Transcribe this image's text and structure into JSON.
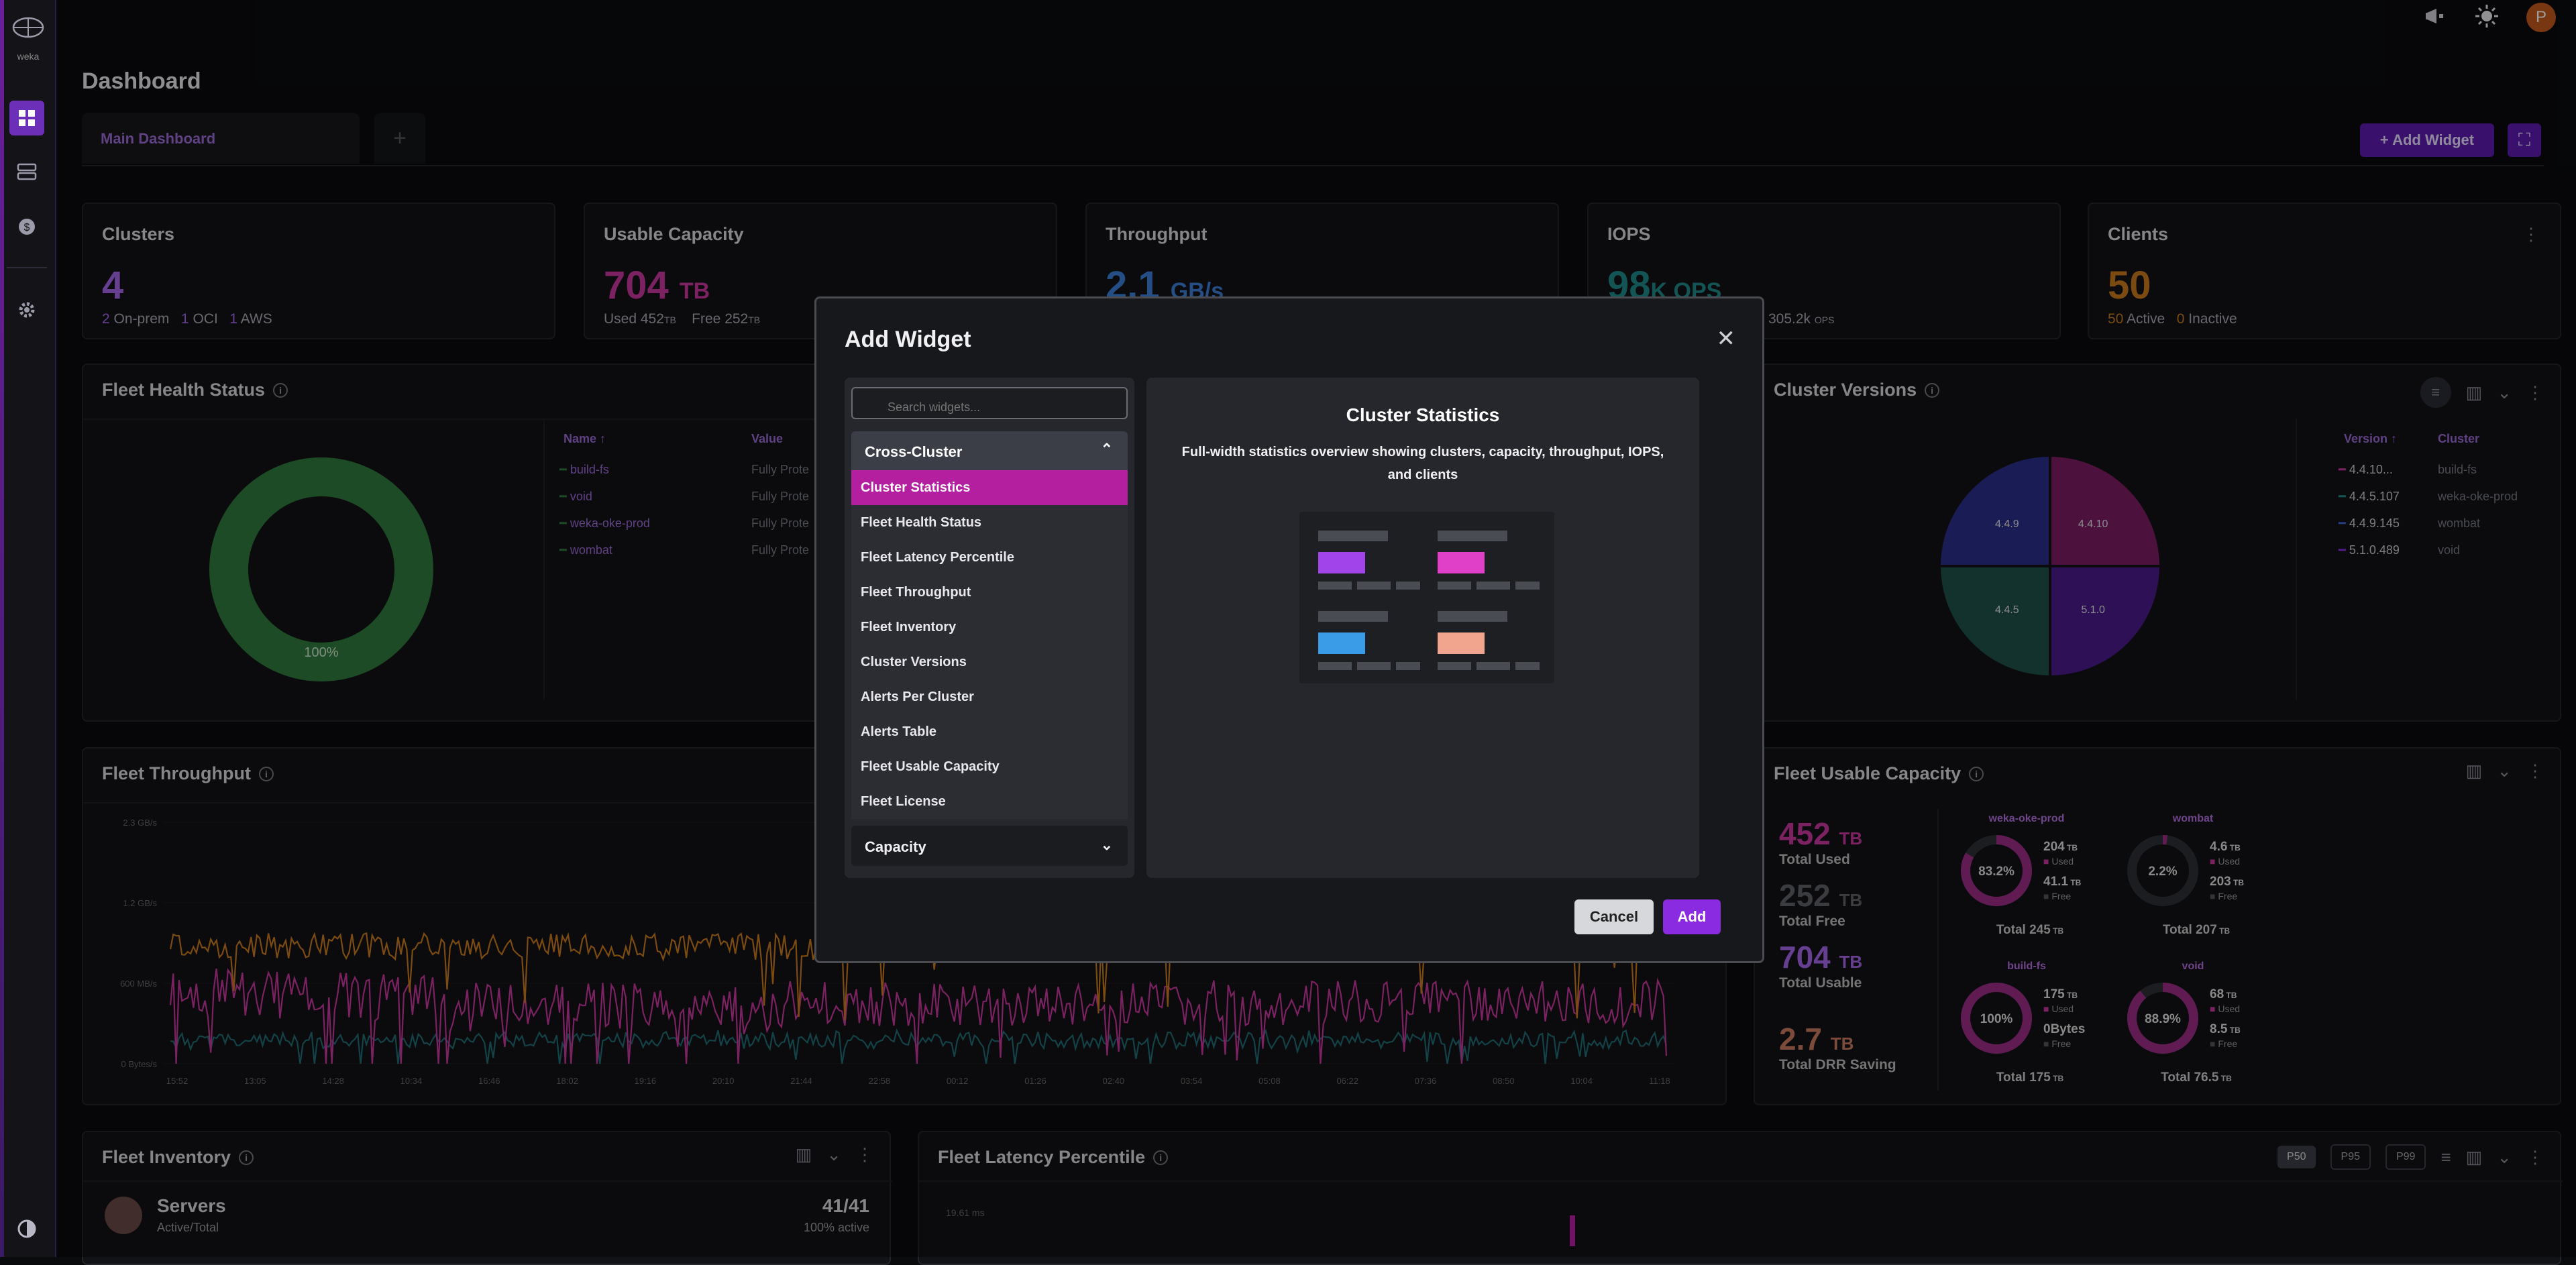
{
  "app": {
    "logo_text": "weka"
  },
  "header": {
    "page_title": "Dashboard",
    "avatar_initial": "P"
  },
  "tabs": {
    "main_label": "Main Dashboard",
    "add_tab": "+"
  },
  "toolbar": {
    "add_widget_label": "+ Add Widget"
  },
  "stats": {
    "clusters": {
      "title": "Clusters",
      "value": "4",
      "onprem_count": "2",
      "onprem_label": "On-prem",
      "oci_count": "1",
      "oci_label": "OCI",
      "aws_count": "1",
      "aws_label": "AWS"
    },
    "capacity": {
      "title": "Usable Capacity",
      "value": "704",
      "unit": "TB",
      "used_label": "Used",
      "used_value": "452",
      "used_unit": "TB",
      "free_label": "Free",
      "free_value": "252",
      "free_unit": "TB"
    },
    "throughput": {
      "title": "Throughput",
      "value": "2.1",
      "unit": "GB/s"
    },
    "iops": {
      "title": "IOPS",
      "value": "98",
      "unit": "K OPS",
      "sub_value": "305.2k",
      "sub_unit": "OPS"
    },
    "clients": {
      "title": "Clients",
      "value": "50",
      "active_count": "50",
      "active_label": "Active",
      "inactive_count": "0",
      "inactive_label": "Inactive"
    }
  },
  "fleet_health": {
    "title": "Fleet Health Status",
    "donut_label": "100%",
    "col_name": "Name",
    "col_value": "Value",
    "rows": [
      {
        "name": "build-fs",
        "value": "Fully Prote"
      },
      {
        "name": "void",
        "value": "Fully Prote"
      },
      {
        "name": "weka-oke-prod",
        "value": "Fully Prote"
      },
      {
        "name": "wombat",
        "value": "Fully Prote"
      }
    ]
  },
  "cluster_versions": {
    "title": "Cluster Versions",
    "col_version": "Version",
    "col_cluster": "Cluster",
    "rows": [
      {
        "version": "4.4.10...",
        "cluster": "build-fs"
      },
      {
        "version": "4.4.5.107",
        "cluster": "weka-oke-prod"
      },
      {
        "version": "4.4.9.145",
        "cluster": "wombat"
      },
      {
        "version": "5.1.0.489",
        "cluster": "void"
      }
    ],
    "pie_labels": [
      "4.4.9",
      "4.4.10",
      "4.4.5",
      "5.1.0"
    ],
    "colors": [
      "#2b2f8a",
      "#7b1e63",
      "#1f4f4a",
      "#4a1a8a"
    ]
  },
  "fleet_throughput": {
    "title": "Fleet Throughput",
    "y_ticks": [
      "2.3 GB/s",
      "1.2 GB/s",
      "600 MB/s",
      "0 Bytes/s"
    ],
    "x_ticks": [
      "15:52",
      "13:05",
      "14:28",
      "10:34",
      "16:46",
      "18:02",
      "19:16",
      "20:10",
      "21:44",
      "22:58",
      "00:12",
      "01:26",
      "02:40",
      "03:54",
      "05:08",
      "06:22",
      "07:36",
      "08:50",
      "10:04",
      "11:18"
    ]
  },
  "fleet_usable": {
    "title": "Fleet Usable Capacity",
    "used_value": "452",
    "used_label": "Total Used",
    "free_value": "252",
    "free_label": "Total Free",
    "usable_value": "704",
    "usable_label": "Total Usable",
    "drr_value": "2.7",
    "drr_label": "Total DRR Saving",
    "unit": "TB",
    "clusters": [
      {
        "name": "weka-oke-prod",
        "pct": "83.2%",
        "used": "204",
        "free": "41.1",
        "total": "Total 245",
        "fill": 0.832
      },
      {
        "name": "wombat",
        "pct": "2.2%",
        "used": "4.6",
        "free": "203",
        "total": "Total 207",
        "fill": 0.022
      },
      {
        "name": "build-fs",
        "pct": "100%",
        "used": "175",
        "free": "0Bytes",
        "total": "Total 175",
        "fill": 1.0
      },
      {
        "name": "void",
        "pct": "88.9%",
        "used": "68",
        "free": "8.5",
        "total": "Total 76.5",
        "fill": 0.889
      }
    ],
    "used_lbl": "Used",
    "free_lbl": "Free"
  },
  "fleet_inventory": {
    "title": "Fleet Inventory",
    "servers_label": "Servers",
    "servers_sub": "Active/Total",
    "servers_value": "41/41",
    "servers_pct": "100% active"
  },
  "fleet_latency": {
    "title": "Fleet Latency Percentile",
    "p_buttons": [
      "P50",
      "P95",
      "P99"
    ],
    "y_tick": "19.61 ms"
  },
  "modal": {
    "title": "Add Widget",
    "search_placeholder": "Search widgets...",
    "category": "Cross-Cluster",
    "items": [
      "Cluster Statistics",
      "Fleet Health Status",
      "Fleet Latency Percentile",
      "Fleet Throughput",
      "Fleet Inventory",
      "Cluster Versions",
      "Alerts Per Cluster",
      "Alerts Table",
      "Fleet Usable Capacity",
      "Fleet License"
    ],
    "category2": "Capacity",
    "preview_title": "Cluster Statistics",
    "preview_desc": "Full-width statistics overview showing clusters, capacity, throughput, IOPS, and clients",
    "cancel_label": "Cancel",
    "add_label": "Add"
  },
  "colors": {
    "purple": "#a566ea",
    "magenta": "#c8379f",
    "orange": "#c87a1e",
    "teal": "#1f6b73",
    "blue": "#3a7fd6",
    "green": "#2f7a3c"
  }
}
